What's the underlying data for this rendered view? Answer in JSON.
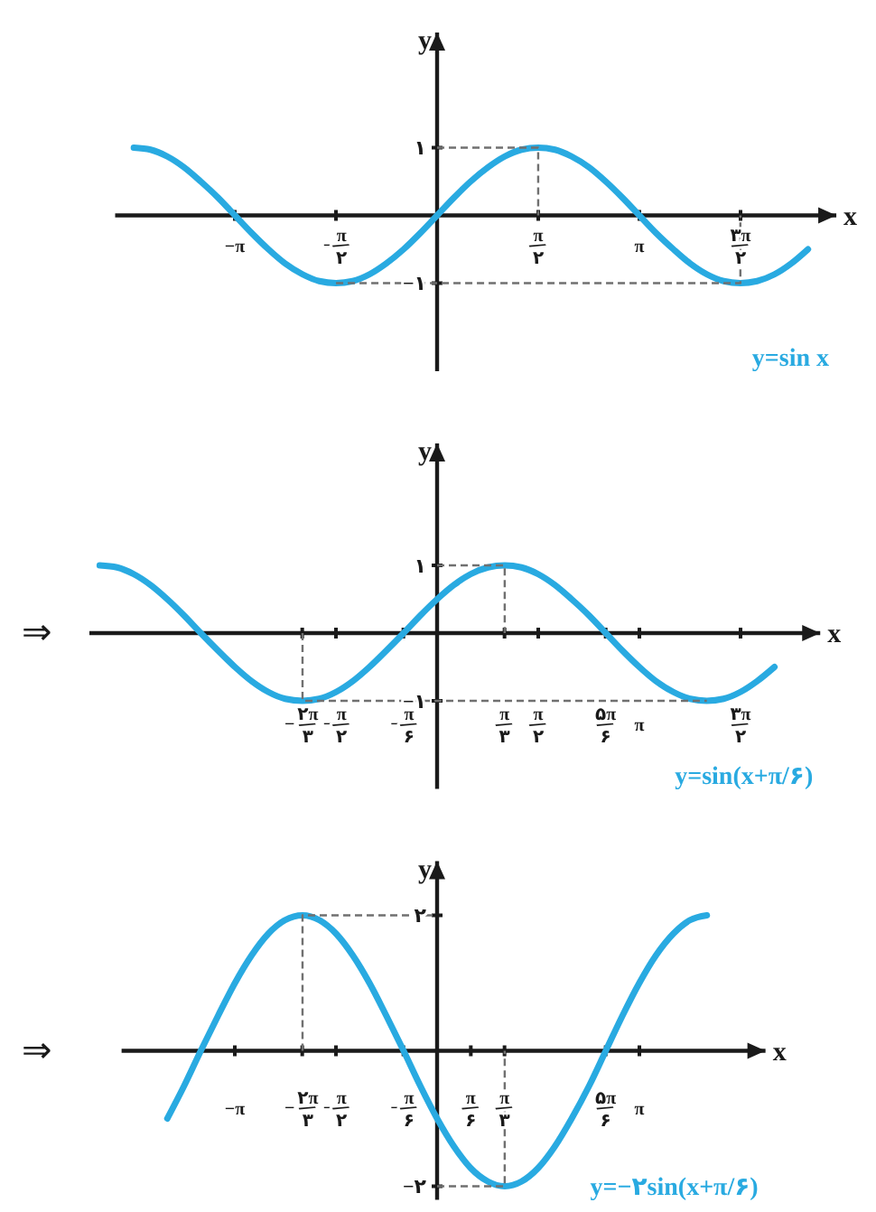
{
  "chart_data": [
    {
      "type": "line",
      "xlabel": "x",
      "ylabel": "y",
      "xlim": [
        -5,
        6.2
      ],
      "ylim": [
        -2.3,
        2.7
      ],
      "xticks": [
        {
          "value": -3.1416,
          "label": "−π"
        },
        {
          "value": -1.5708,
          "label": "−π/۲"
        },
        {
          "value": 1.5708,
          "label": "π/۲"
        },
        {
          "value": 3.1416,
          "label": "π"
        },
        {
          "value": 4.7124,
          "label": "۳π/۲"
        }
      ],
      "yticks": [
        {
          "value": 1,
          "label": "۱"
        },
        {
          "value": -1,
          "label": "−۱"
        }
      ],
      "series": [
        {
          "name": "y=sin x",
          "color": "#29aae1",
          "x": [
            -4.71,
            -4.45,
            -4.19,
            -3.93,
            -3.67,
            -3.4,
            -3.14,
            -2.88,
            -2.62,
            -2.36,
            -2.09,
            -1.83,
            -1.57,
            -1.31,
            -1.05,
            -0.79,
            -0.52,
            -0.26,
            0,
            0.26,
            0.52,
            0.79,
            1.05,
            1.31,
            1.57,
            1.83,
            2.09,
            2.36,
            2.62,
            2.88,
            3.14,
            3.4,
            3.67,
            3.93,
            4.19,
            4.45,
            4.71,
            4.97,
            5.24,
            5.5,
            5.76
          ],
          "values": [
            1,
            0.97,
            0.87,
            0.71,
            0.5,
            0.26,
            0,
            -0.26,
            -0.5,
            -0.71,
            -0.87,
            -0.97,
            -1,
            -0.97,
            -0.87,
            -0.71,
            -0.5,
            -0.26,
            0,
            0.26,
            0.5,
            0.71,
            0.87,
            0.97,
            1,
            0.97,
            0.87,
            0.71,
            0.5,
            0.26,
            0,
            -0.26,
            -0.5,
            -0.71,
            -0.87,
            -0.97,
            -1,
            -0.97,
            -0.87,
            -0.71,
            -0.5
          ]
        },
        {
          "type": "line",
          "line_style": "dashed",
          "color": "#707070",
          "x": [
            0,
            1.57,
            1.57
          ],
          "values": [
            1,
            1,
            0
          ]
        },
        {
          "type": "line",
          "line_style": "dashed",
          "color": "#707070",
          "x": [
            -1.57,
            4.71,
            4.71
          ],
          "values": [
            -1,
            -1,
            0
          ]
        }
      ]
    },
    {
      "type": "line",
      "xlabel": "x",
      "ylabel": "y",
      "xlim": [
        -5.4,
        5.95
      ],
      "ylim": [
        -2.3,
        2.8
      ],
      "xticks": [
        {
          "value": -2.0944,
          "label": "−۲π/۳"
        },
        {
          "value": -1.5708,
          "label": "−π/۲"
        },
        {
          "value": -0.5236,
          "label": "−π/۶"
        },
        {
          "value": 1.0472,
          "label": "π/۳"
        },
        {
          "value": 1.5708,
          "label": "π/۲"
        },
        {
          "value": 2.618,
          "label": "۵π/۶"
        },
        {
          "value": 3.1416,
          "label": "π"
        },
        {
          "value": 4.7124,
          "label": "۳π/۲"
        }
      ],
      "yticks": [
        {
          "value": 1,
          "label": "۱"
        },
        {
          "value": -1,
          "label": "−۱"
        }
      ],
      "annotations": [
        "⇒"
      ],
      "series": [
        {
          "name": "y=sin(x+π/۶)",
          "color": "#29aae1",
          "x": [
            -5.24,
            -4.97,
            -4.71,
            -4.45,
            -4.19,
            -3.93,
            -3.67,
            -3.4,
            -3.14,
            -2.88,
            -2.62,
            -2.36,
            -2.09,
            -1.83,
            -1.57,
            -1.31,
            -1.05,
            -0.79,
            -0.52,
            -0.26,
            0,
            0.26,
            0.52,
            0.79,
            1.05,
            1.31,
            1.57,
            1.83,
            2.09,
            2.36,
            2.62,
            2.88,
            3.14,
            3.4,
            3.67,
            3.93,
            4.19,
            4.45,
            4.71,
            4.97,
            5.24
          ],
          "values": [
            1,
            0.97,
            0.87,
            0.71,
            0.5,
            0.26,
            0,
            -0.26,
            -0.5,
            -0.71,
            -0.87,
            -0.97,
            -1,
            -0.97,
            -0.87,
            -0.71,
            -0.5,
            -0.26,
            0,
            0.26,
            0.5,
            0.71,
            0.87,
            0.97,
            1,
            0.97,
            0.87,
            0.71,
            0.5,
            0.26,
            0,
            -0.26,
            -0.5,
            -0.71,
            -0.87,
            -0.97,
            -1,
            -0.97,
            -0.87,
            -0.71,
            -0.5
          ]
        },
        {
          "type": "line",
          "line_style": "dashed",
          "color": "#707070",
          "x": [
            0,
            1.05,
            1.05
          ],
          "values": [
            1,
            1,
            0
          ]
        },
        {
          "type": "line",
          "line_style": "dashed",
          "color": "#707070",
          "x": [
            -2.09,
            -2.09,
            4.19
          ],
          "values": [
            0,
            -1,
            -1
          ]
        }
      ]
    },
    {
      "type": "line",
      "xlabel": "x",
      "ylabel": "y",
      "xlim": [
        -4.9,
        5.1
      ],
      "ylim": [
        -2.2,
        2.8
      ],
      "xticks": [
        {
          "value": -3.1416,
          "label": "−π"
        },
        {
          "value": -2.0944,
          "label": "−۲π/۳"
        },
        {
          "value": -1.5708,
          "label": "−π/۲"
        },
        {
          "value": -0.5236,
          "label": "−π/۶"
        },
        {
          "value": 0.5236,
          "label": "π/۶"
        },
        {
          "value": 1.0472,
          "label": "π/۳"
        },
        {
          "value": 2.618,
          "label": "۵π/۶"
        },
        {
          "value": 3.1416,
          "label": "π"
        }
      ],
      "yticks": [
        {
          "value": 2,
          "label": "۲"
        },
        {
          "value": -2,
          "label": "−۲"
        }
      ],
      "annotations": [
        "⇒"
      ],
      "series": [
        {
          "name": "y=−۲sin(x+π/۶)",
          "color": "#29aae1",
          "x": [
            -4.19,
            -3.93,
            -3.67,
            -3.4,
            -3.14,
            -2.88,
            -2.62,
            -2.36,
            -2.09,
            -1.83,
            -1.57,
            -1.31,
            -1.05,
            -0.79,
            -0.52,
            -0.26,
            0,
            0.26,
            0.52,
            0.79,
            1.05,
            1.31,
            1.57,
            1.83,
            2.09,
            2.36,
            2.62,
            2.88,
            3.14,
            3.4,
            3.67,
            3.93,
            4.19
          ],
          "values": [
            -1,
            -0.52,
            0,
            0.52,
            1,
            1.41,
            1.73,
            1.93,
            2,
            1.93,
            1.73,
            1.41,
            1,
            0.52,
            0,
            -0.52,
            -1,
            -1.41,
            -1.73,
            -1.93,
            -2,
            -1.93,
            -1.73,
            -1.41,
            -1,
            -0.52,
            0,
            0.52,
            1,
            1.41,
            1.73,
            1.93,
            2
          ]
        },
        {
          "type": "line",
          "line_style": "dashed",
          "color": "#707070",
          "x": [
            -2.09,
            -2.09,
            0
          ],
          "values": [
            0,
            2,
            2
          ]
        },
        {
          "type": "line",
          "line_style": "dashed",
          "color": "#707070",
          "x": [
            0,
            1.05,
            1.05
          ],
          "values": [
            -2,
            -2,
            0
          ]
        }
      ]
    }
  ]
}
